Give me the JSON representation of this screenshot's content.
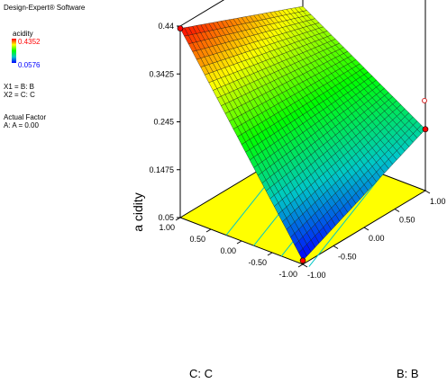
{
  "app": {
    "title": "Design-Expert® Software"
  },
  "legend": {
    "variable": "acidity",
    "max_label": "0.4352",
    "min_label": "0.0576",
    "colors": [
      "#ff0000",
      "#ffff00",
      "#00ff00",
      "#00c8c8",
      "#0000ff"
    ]
  },
  "factors": {
    "x1": "X1 = B: B",
    "x2": "X2 = C: C",
    "actual_factor_title": "Actual Factor",
    "actual_factor_value": "A: A = 0.00"
  },
  "chart_data": {
    "type": "surface3d",
    "response_label": "a cidity",
    "x_label": "B: B",
    "y_label": "C: C",
    "z_ticks": [
      "0.05",
      "0.1475",
      "0.245",
      "0.3425",
      "0.44"
    ],
    "z_range": [
      0.05,
      0.44
    ],
    "x_ticks": [
      "-1.00",
      "-0.50",
      "0.00",
      "0.50",
      "1.00"
    ],
    "y_ticks": [
      "-1.00",
      "-0.50",
      "0.00",
      "0.50",
      "1.00"
    ],
    "x_range": [
      -1,
      1
    ],
    "y_range": [
      -1,
      1
    ],
    "surface_corners": [
      {
        "B": -1,
        "C": 1,
        "acidity": 0.4352
      },
      {
        "B": 1,
        "C": 1,
        "acidity": 0.33
      },
      {
        "B": 1,
        "C": -1,
        "acidity": 0.175
      },
      {
        "B": -1,
        "C": -1,
        "acidity": 0.0576
      }
    ],
    "floor_color": "#ffff00",
    "design_points_color": "#ff0000"
  }
}
